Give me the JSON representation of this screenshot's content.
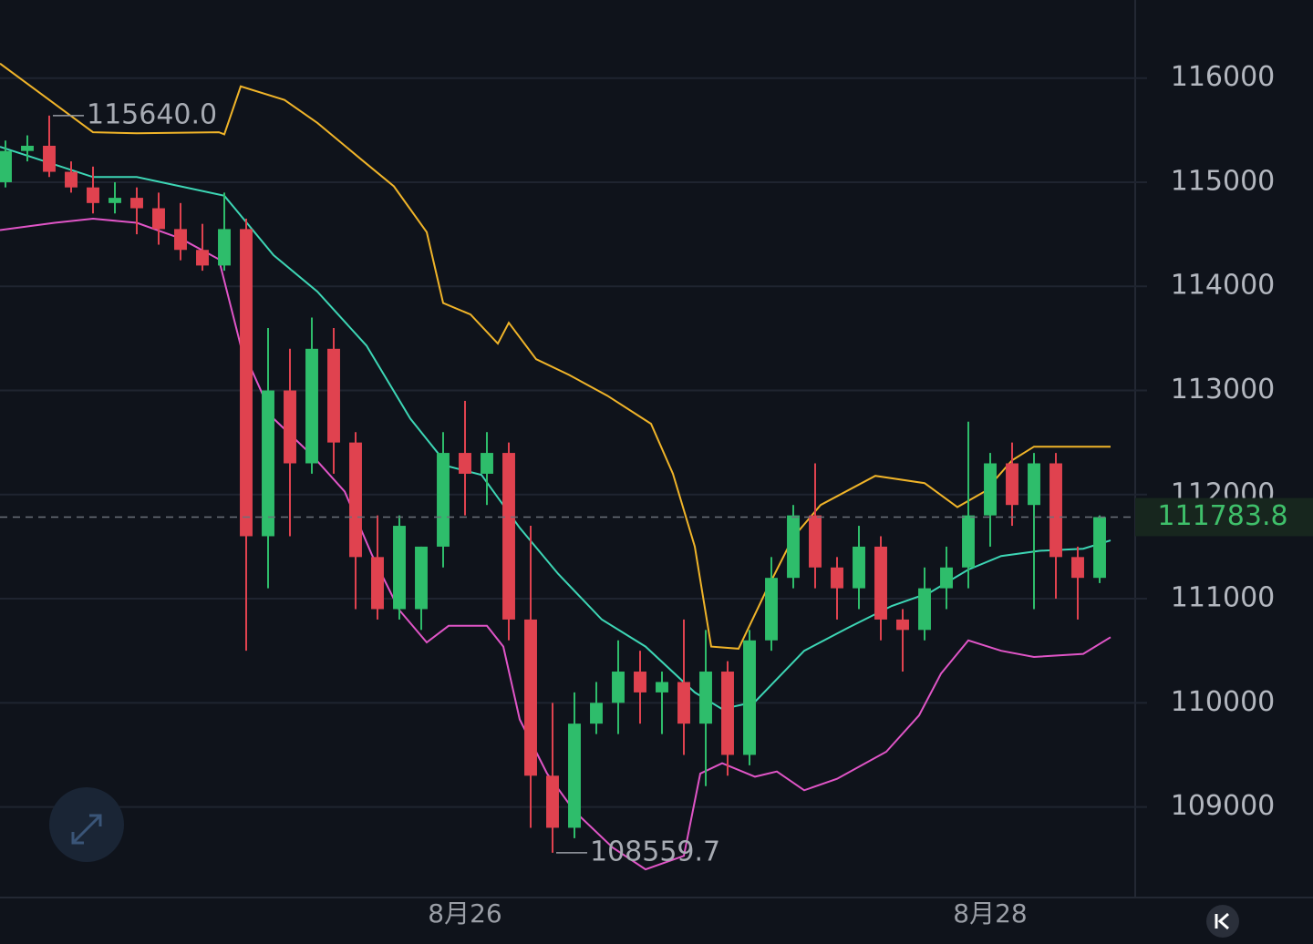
{
  "chart_data": {
    "type": "candlestick",
    "x": [
      0,
      2,
      4,
      6,
      8,
      10,
      12,
      14,
      16,
      18,
      20,
      22,
      24,
      26,
      28,
      30,
      32,
      34,
      36,
      38,
      40,
      42,
      44,
      46,
      48,
      50,
      52,
      54,
      56,
      58,
      60,
      62,
      64,
      66,
      68,
      70,
      72,
      74,
      76,
      78,
      80,
      82,
      84,
      86,
      88,
      90,
      92,
      94,
      96,
      98,
      100
    ],
    "open": [
      115000,
      115300,
      115350,
      115100,
      114950,
      114800,
      114850,
      114750,
      114550,
      114350,
      114200,
      114550,
      111600,
      113000,
      112300,
      113400,
      112500,
      111400,
      110900,
      110900,
      111500,
      112400,
      112200,
      112400,
      110800,
      109300,
      108800,
      109800,
      110000,
      110300,
      110100,
      110200,
      109800,
      110300,
      109500,
      110600,
      111200,
      111800,
      111300,
      111100,
      111500,
      110800,
      110700,
      111100,
      111300,
      111800,
      112300,
      111900,
      112300,
      111400,
      111200
    ],
    "high": [
      115400,
      115450,
      115640,
      115200,
      115150,
      115000,
      114950,
      114900,
      114800,
      114600,
      114900,
      114650,
      113600,
      113400,
      113700,
      113600,
      112600,
      111800,
      111800,
      111500,
      112600,
      112900,
      112600,
      112500,
      111700,
      110000,
      110100,
      110200,
      110600,
      110500,
      110300,
      110800,
      110700,
      110400,
      110700,
      111400,
      111900,
      112300,
      111400,
      111700,
      111600,
      110900,
      111300,
      111500,
      112700,
      112400,
      112500,
      112400,
      112400,
      111500,
      111800
    ],
    "low": [
      114950,
      115200,
      115050,
      114900,
      114700,
      114700,
      114500,
      114400,
      114250,
      114150,
      114150,
      110500,
      111100,
      111600,
      112200,
      112200,
      110900,
      110800,
      110800,
      110700,
      111300,
      111800,
      111900,
      110600,
      108800,
      108559.7,
      108700,
      109700,
      109700,
      109800,
      109700,
      109500,
      109200,
      109300,
      109400,
      110500,
      111100,
      111100,
      110800,
      110900,
      110600,
      110300,
      110600,
      110900,
      111100,
      111500,
      111700,
      110900,
      111000,
      110800,
      111150
    ],
    "close": [
      115300,
      115350,
      115100,
      114950,
      114800,
      114850,
      114750,
      114550,
      114350,
      114200,
      114550,
      111600,
      113000,
      112300,
      113400,
      112500,
      111400,
      110900,
      111700,
      111500,
      112400,
      112200,
      112400,
      110800,
      109300,
      108800,
      109800,
      110000,
      110300,
      110100,
      110200,
      109800,
      110300,
      109500,
      110600,
      111200,
      111800,
      111300,
      111100,
      111500,
      110800,
      110700,
      111100,
      111300,
      111800,
      112300,
      111900,
      112300,
      111400,
      111200,
      111783.8
    ],
    "up_color": "#2ebd6b",
    "down_color": "#e0424f",
    "series": [
      {
        "color": "#f0b429",
        "x": [
          -0.5,
          8,
          12,
          19.5,
          20,
          21.5,
          25.5,
          28.5,
          32.5,
          35.5,
          38.5,
          40,
          42.5,
          45,
          46,
          48.5,
          51.5,
          55,
          59,
          61,
          63,
          64.5,
          67,
          69.5,
          72,
          74.5,
          79.5,
          84,
          87,
          89.5,
          92,
          94,
          101
        ],
        "values": [
          116140,
          115480,
          115470,
          115480,
          115460,
          115920,
          115790,
          115570,
          115220,
          114960,
          114520,
          113840,
          113730,
          113450,
          113650,
          113300,
          113150,
          112950,
          112680,
          112200,
          111500,
          110540,
          110520,
          111070,
          111590,
          111900,
          112180,
          112110,
          111880,
          112030,
          112330,
          112460,
          112460
        ]
      },
      {
        "color": "#3dd6b5",
        "x": [
          -0.5,
          8,
          12,
          16,
          20,
          24.5,
          28.5,
          33,
          37,
          40.5,
          43.5,
          47,
          50.5,
          54.5,
          58.5,
          63,
          65.5,
          68.5,
          73,
          77,
          81,
          84.5,
          88,
          91,
          94.5,
          98.5,
          101
        ],
        "values": [
          115340,
          115050,
          115050,
          114960,
          114870,
          114300,
          113950,
          113430,
          112730,
          112270,
          112190,
          111680,
          111240,
          110800,
          110540,
          110100,
          109940,
          110010,
          110500,
          110720,
          110930,
          111060,
          111280,
          111410,
          111460,
          111480,
          111560
        ]
      },
      {
        "color": "#e055c7",
        "x": [
          -0.5,
          4.5,
          8,
          12,
          16,
          19.5,
          21.5,
          24.5,
          28,
          31,
          33.5,
          36,
          38.5,
          40.5,
          44,
          45.5,
          47,
          49.5,
          52,
          55.5,
          58.5,
          62,
          63.5,
          65.5,
          68.5,
          70.5,
          73,
          76,
          80.5,
          83.5,
          85.5,
          88,
          91,
          94,
          98.5,
          101
        ],
        "values": [
          114540,
          114610,
          114650,
          114610,
          114460,
          114260,
          113430,
          112730,
          112380,
          112030,
          111420,
          110890,
          110580,
          110740,
          110740,
          110540,
          109840,
          109320,
          108960,
          108610,
          108400,
          108530,
          109320,
          109420,
          109290,
          109340,
          109160,
          109270,
          109530,
          109880,
          110280,
          110600,
          110500,
          110440,
          110470,
          110630
        ]
      }
    ],
    "xlim": [
      -0.5,
      103.25
    ],
    "xticks": [
      {
        "value": 42,
        "label": "8月26"
      },
      {
        "value": 90,
        "label": "8月28"
      }
    ],
    "ylim": [
      108130,
      116750
    ],
    "yticks": [
      109000,
      110000,
      111000,
      112000,
      113000,
      114000,
      115000,
      116000
    ],
    "grid": true,
    "max_label": "115640.0",
    "min_label": "108559.7",
    "last_price_label": "111783.8"
  }
}
